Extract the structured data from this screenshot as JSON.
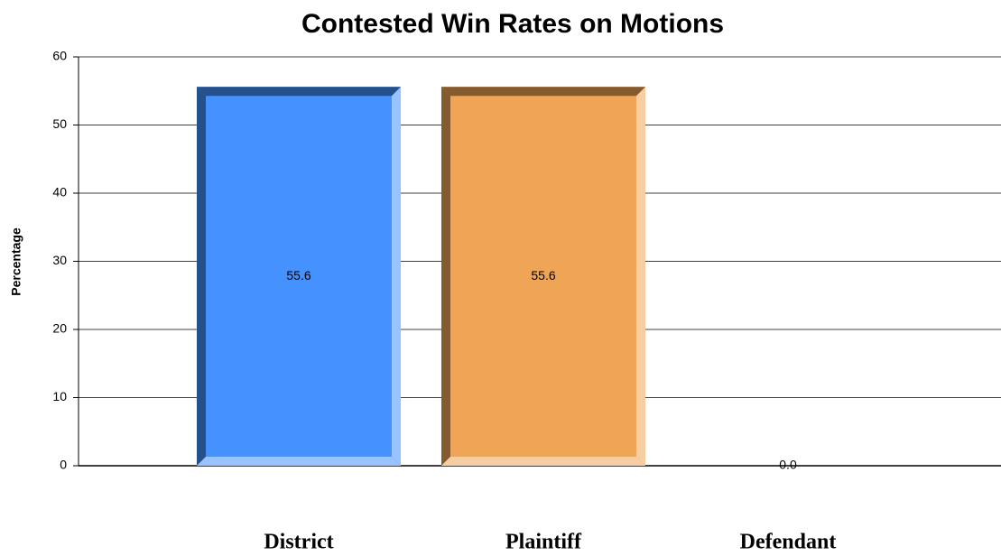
{
  "chart_data": {
    "type": "bar",
    "title": "Contested Win Rates on Motions",
    "ylabel": "Percentage",
    "categories": [
      "District",
      "Plaintiff",
      "Defendant"
    ],
    "values": [
      55.6,
      55.6,
      0
    ],
    "value_labels": [
      "55.6",
      "55.6",
      "0.0"
    ],
    "colors": [
      "#4592ff",
      "#f0a455",
      "#8fbf5a"
    ],
    "ylim": [
      0,
      60
    ],
    "yticks": [
      0,
      10,
      20,
      30,
      40,
      50,
      60
    ],
    "grid": true
  }
}
